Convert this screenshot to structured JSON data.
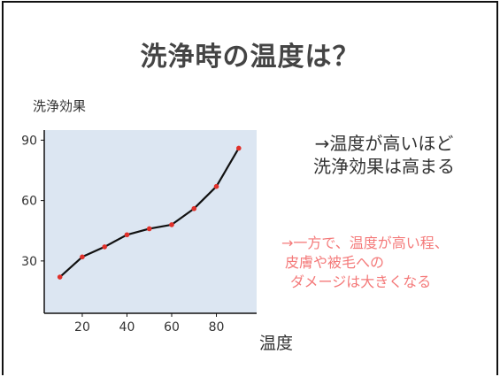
{
  "title": "洗浄時の温度は？",
  "note_main": [
    "→温度が高いほど",
    "洗浄効果は高まる"
  ],
  "note_red": [
    "→一方で、温度が高い程、",
    "皮膚や被毛への",
    "ダメージは大きくなる"
  ],
  "colors": {
    "plot_bg": "#dce6f2",
    "line": "#111111",
    "marker": "#e0302a",
    "note_red": "#f47a7a",
    "title": "#444444"
  },
  "chart_data": {
    "type": "line",
    "xlabel": "温度",
    "ylabel": "洗浄効果",
    "x_ticks": [
      20,
      40,
      60,
      80
    ],
    "y_ticks": [
      30,
      60,
      90
    ],
    "xlim": [
      3,
      98
    ],
    "ylim": [
      4,
      95
    ],
    "grid": false,
    "series": [
      {
        "x": [
          10,
          20,
          30,
          40,
          50,
          60,
          70,
          80,
          90
        ],
        "y": [
          22,
          32,
          37,
          43,
          46,
          48,
          56,
          67,
          86
        ]
      }
    ]
  }
}
